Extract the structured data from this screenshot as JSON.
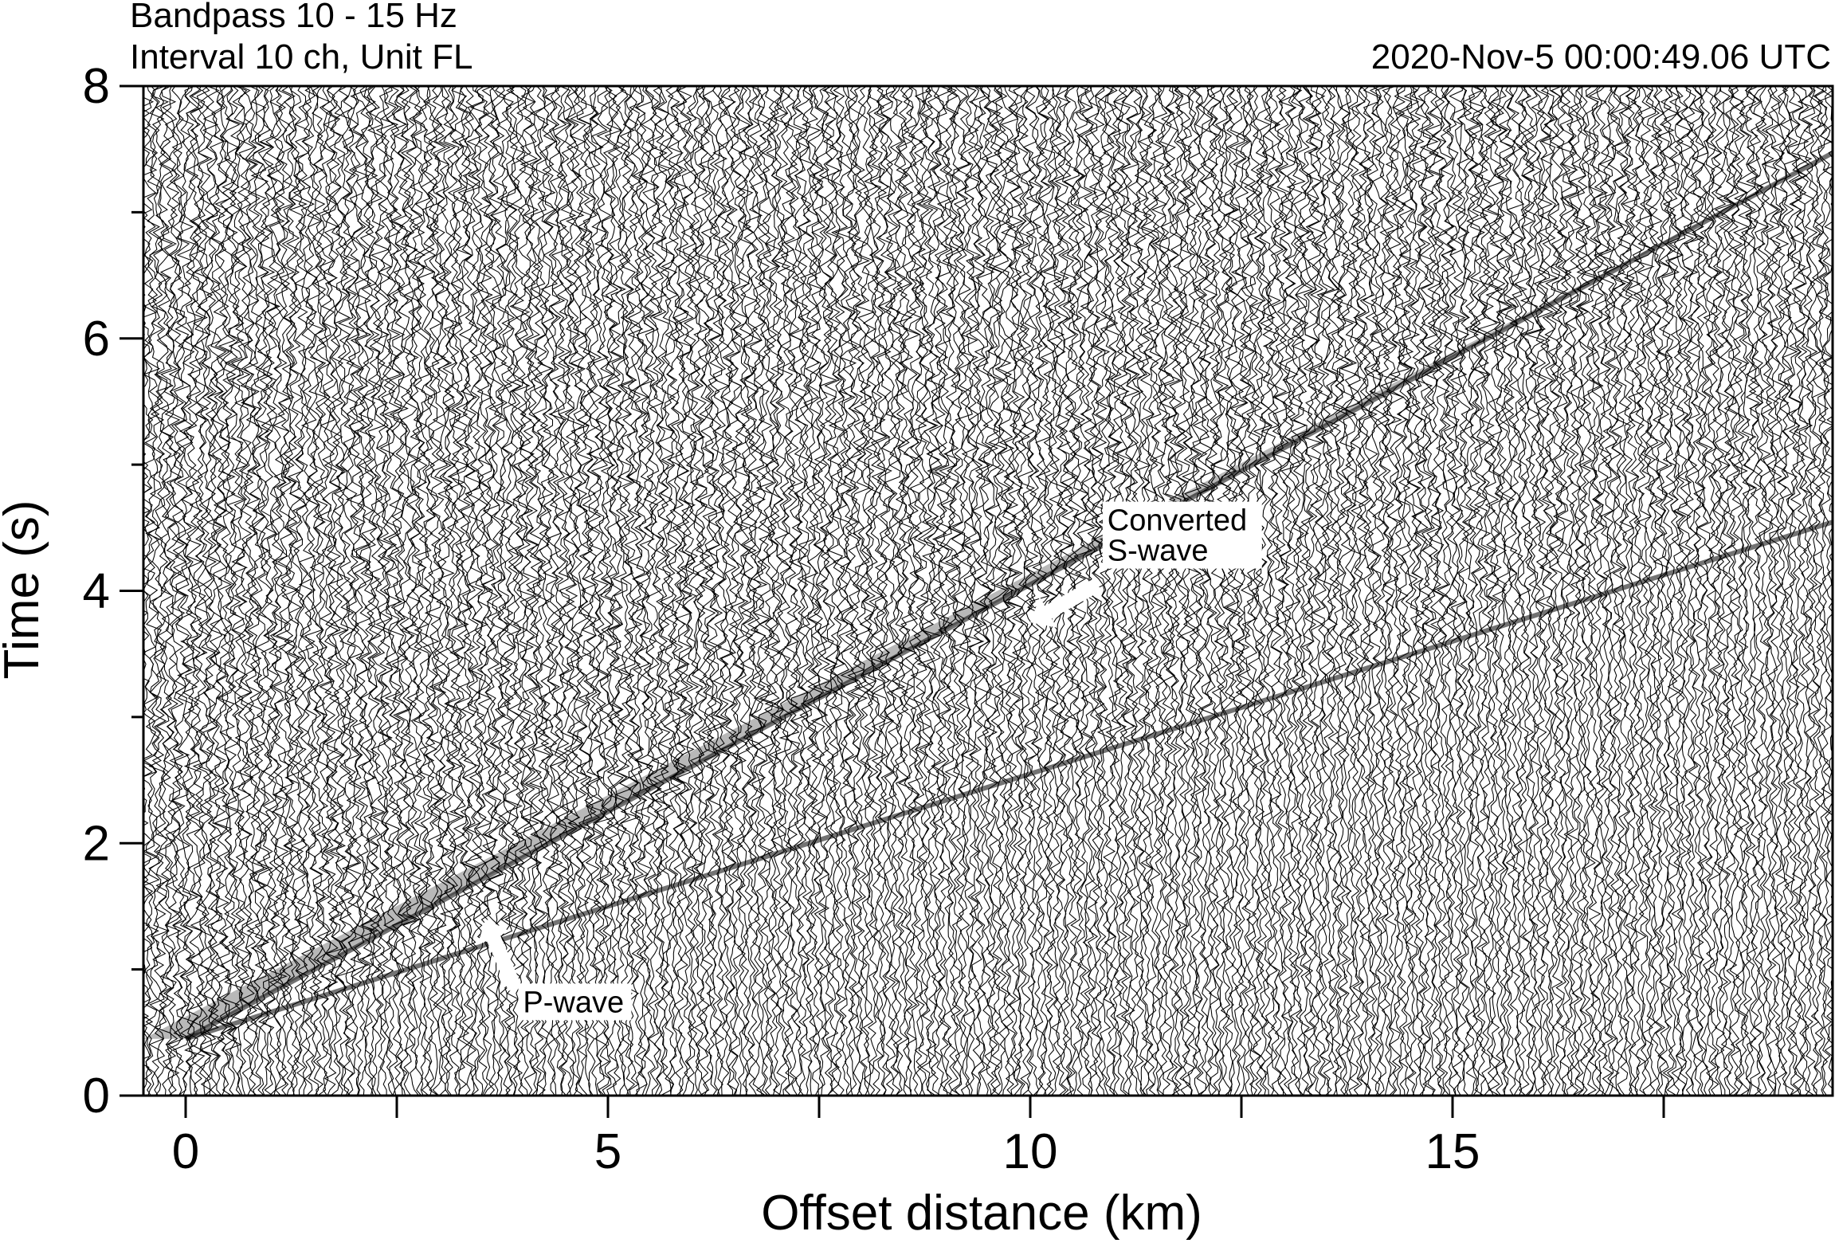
{
  "chart_data": {
    "type": "wiggle",
    "header": {
      "filter": "Bandpass 10 - 15 Hz",
      "interval": "Interval 10 ch, Unit FL",
      "timestamp": "2020-Nov-5 00:00:49.06 UTC"
    },
    "xlabel": "Offset distance (km)",
    "ylabel": "Time (s)",
    "xlim": [
      -0.5,
      19.5
    ],
    "ylim": [
      0,
      8
    ],
    "x_ticks": [
      {
        "value": 0,
        "label": "0"
      },
      {
        "value": 5,
        "label": "5"
      },
      {
        "value": 10,
        "label": "10"
      },
      {
        "value": 15,
        "label": "15"
      }
    ],
    "x_minor_ticks": [
      2.5,
      7.5,
      12.5,
      17.5
    ],
    "y_ticks": [
      {
        "value": 0,
        "label": "0"
      },
      {
        "value": 2,
        "label": "2"
      },
      {
        "value": 4,
        "label": "4"
      },
      {
        "value": 6,
        "label": "6"
      },
      {
        "value": 8,
        "label": "8"
      }
    ],
    "y_minor_ticks": [
      1,
      3,
      5,
      7
    ],
    "arrivals": [
      {
        "name": "P-wave",
        "t0": 0.45,
        "slope_s_per_km": 0.21
      },
      {
        "name": "Converted S-wave",
        "t0": 0.45,
        "slope_s_per_km": 0.36
      }
    ],
    "annotations": [
      {
        "label": "P-wave",
        "arrow_from": [
          3.9,
          0.85
        ],
        "arrow_to": [
          3.55,
          1.4
        ]
      },
      {
        "label": "Converted\nS-wave",
        "arrow_from": [
          10.8,
          4.05
        ],
        "arrow_to": [
          10.0,
          3.75
        ]
      }
    ],
    "grid": false,
    "legend": "none"
  }
}
